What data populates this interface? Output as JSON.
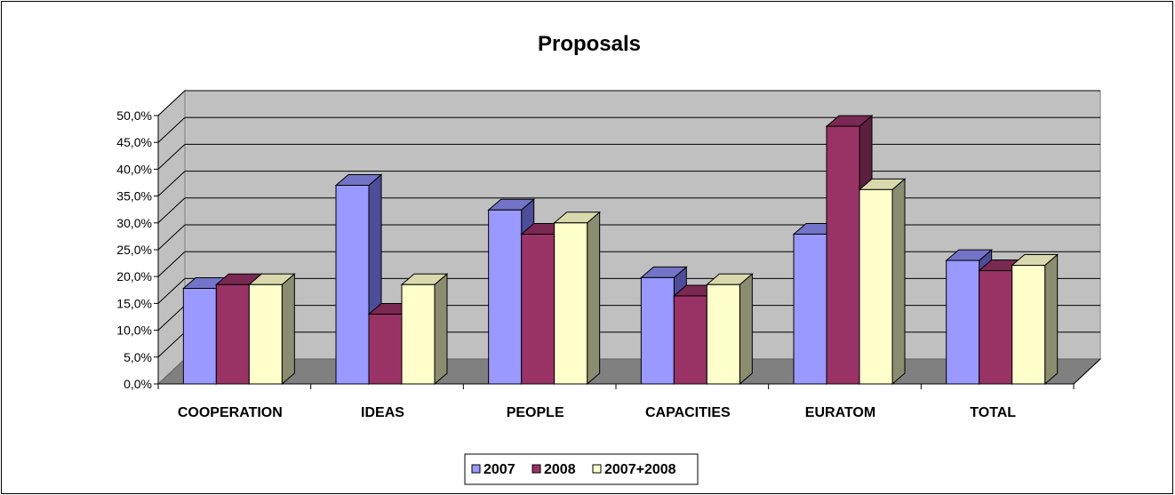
{
  "chart_data": {
    "type": "bar",
    "title": "Proposals",
    "categories": [
      "COOPERATION",
      "IDEAS",
      "PEOPLE",
      "CAPACITIES",
      "EURATOM",
      "TOTAL"
    ],
    "series": [
      {
        "name": "2007",
        "values": [
          17.8,
          37.0,
          32.4,
          19.8,
          27.9,
          23.0
        ],
        "color": "#9999ff",
        "side": "#4d4d99",
        "top": "#7373c8"
      },
      {
        "name": "2008",
        "values": [
          18.5,
          13.0,
          27.9,
          16.4,
          48.0,
          21.1
        ],
        "color": "#993366",
        "side": "#5c1f3d",
        "top": "#7a2952"
      },
      {
        "name": "2007+2008",
        "values": [
          18.5,
          18.5,
          30.0,
          18.5,
          36.2,
          22.1
        ],
        "color": "#ffffcc",
        "side": "#8c8c70",
        "top": "#d9d9ad"
      }
    ],
    "ylim": [
      0,
      50
    ],
    "yticks": [
      "0,0%",
      "5,0%",
      "10,0%",
      "15,0%",
      "20,0%",
      "25,0%",
      "30,0%",
      "35,0%",
      "40,0%",
      "45,0%",
      "50,0%"
    ],
    "grid": true,
    "legend_position": "bottom"
  }
}
